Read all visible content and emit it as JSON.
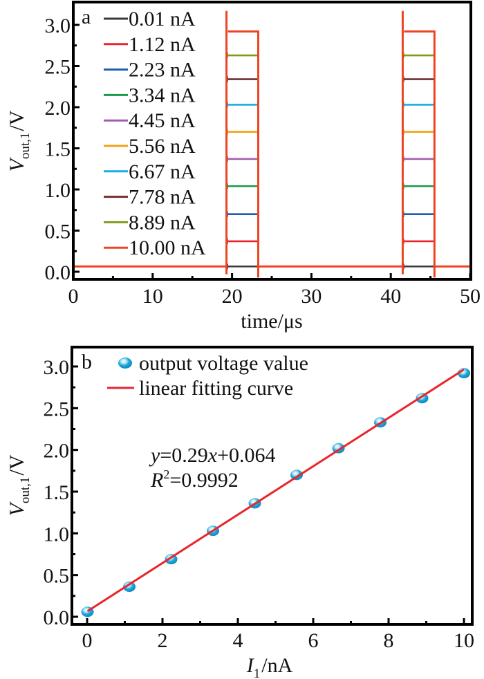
{
  "chart_data": [
    {
      "type": "line",
      "panel_label": "a",
      "xlabel": "time/μs",
      "ylabel_main": "V",
      "ylabel_sub": "out,1",
      "ylabel_unit": "/V",
      "xlim": [
        0,
        50
      ],
      "ylim": [
        -0.1,
        3.2
      ],
      "x_ticks": [
        "0",
        "10",
        "20",
        "30",
        "40",
        "50"
      ],
      "x_tick_values": [
        0,
        10,
        20,
        30,
        40,
        50
      ],
      "y_ticks": [
        "0.0",
        "0.5",
        "1.0",
        "1.5",
        "2.0",
        "2.5",
        "3.0"
      ],
      "y_tick_values": [
        0,
        0.5,
        1.0,
        1.5,
        2.0,
        2.5,
        3.0
      ],
      "legend_position": "top-left",
      "pulses": [
        {
          "start": 19.3,
          "end": 23.3
        },
        {
          "start": 41.5,
          "end": 45.5
        }
      ],
      "baseline": 0.064,
      "spike_peak": 3.17,
      "series": [
        {
          "name": "0.01 nA",
          "color": "#3a3a3a",
          "high": 0.064
        },
        {
          "name": "1.12 nA",
          "color": "#e8262c",
          "high": 0.37
        },
        {
          "name": "2.23 nA",
          "color": "#1f5fae",
          "high": 0.7
        },
        {
          "name": "3.34 nA",
          "color": "#1a9a4a",
          "high": 1.04
        },
        {
          "name": "4.45 nA",
          "color": "#a35bb0",
          "high": 1.37
        },
        {
          "name": "5.56 nA",
          "color": "#f0a21a",
          "high": 1.7
        },
        {
          "name": "6.67 nA",
          "color": "#17aee0",
          "high": 2.03
        },
        {
          "name": "7.78 nA",
          "color": "#6e2f2f",
          "high": 2.34
        },
        {
          "name": "8.89 nA",
          "color": "#7f9a1e",
          "high": 2.63
        },
        {
          "name": "10.00 nA",
          "color": "#ee4422",
          "high": 2.92
        }
      ]
    },
    {
      "type": "scatter",
      "panel_label": "b",
      "xlabel_main": "I",
      "xlabel_sub": "1",
      "xlabel_unit": "/nA",
      "ylabel_main": "V",
      "ylabel_sub": "out,1",
      "ylabel_unit": "/V",
      "xlim": [
        -0.4,
        10.2
      ],
      "ylim": [
        -0.1,
        3.25
      ],
      "x_ticks": [
        "0",
        "2",
        "4",
        "6",
        "8",
        "10"
      ],
      "x_tick_values": [
        0,
        2,
        4,
        6,
        8,
        10
      ],
      "y_ticks": [
        "0.0",
        "0.5",
        "1.0",
        "1.5",
        "2.0",
        "2.5",
        "3.0"
      ],
      "y_tick_values": [
        0,
        0.5,
        1.0,
        1.5,
        2.0,
        2.5,
        3.0
      ],
      "legend_position": "top-left",
      "legend": [
        {
          "name": "output voltage value",
          "marker": "sphere",
          "color": "#1ba6dc"
        },
        {
          "name": "linear fitting curve",
          "marker": "line",
          "color": "#e8262c"
        }
      ],
      "points": {
        "x": [
          0.01,
          1.12,
          2.23,
          3.34,
          4.45,
          5.56,
          6.67,
          7.78,
          8.89,
          10.0
        ],
        "y": [
          0.06,
          0.36,
          0.69,
          1.03,
          1.36,
          1.7,
          2.02,
          2.33,
          2.62,
          2.92
        ]
      },
      "fit": {
        "slope": 0.29,
        "intercept": 0.064,
        "x_range": [
          0.01,
          10.0
        ]
      },
      "equation": {
        "y_var": "y",
        "rhs_a": "=0.29",
        "x_var": "x",
        "rhs_b": "+0.064",
        "r_var": "R",
        "r_sup": "2",
        "r_rhs": "=0.9992"
      }
    }
  ]
}
